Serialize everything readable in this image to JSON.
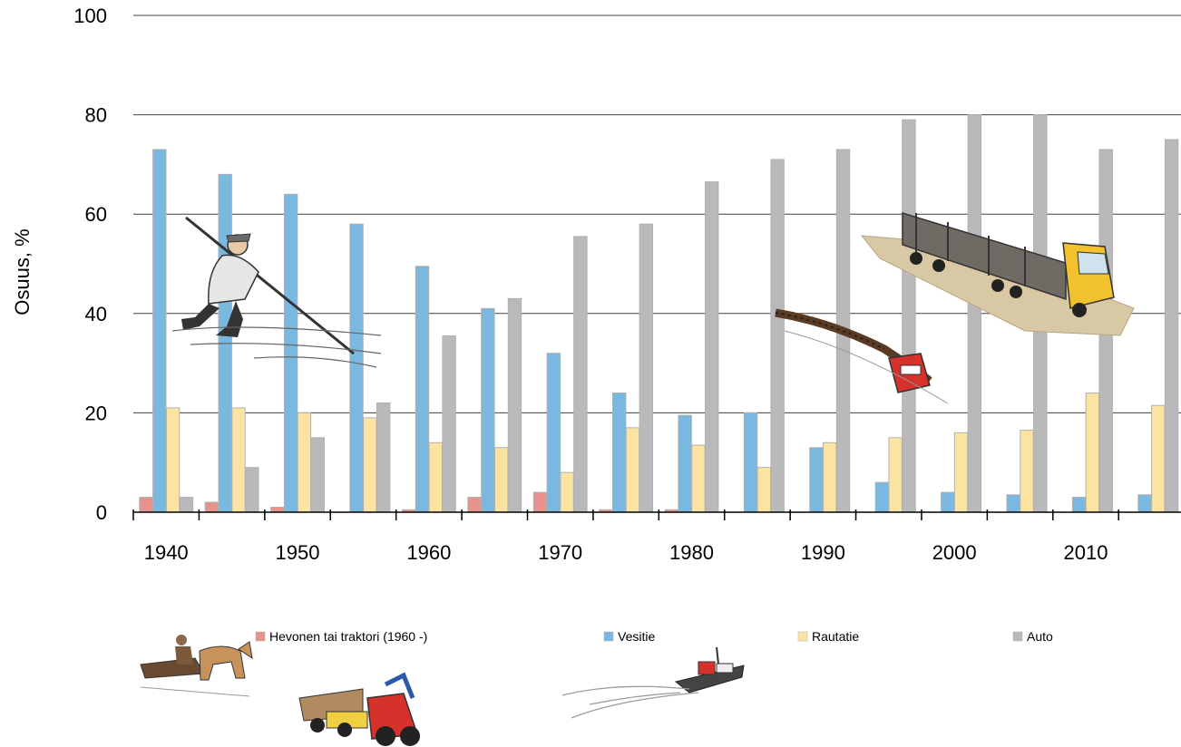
{
  "chart_data": {
    "type": "bar",
    "ylabel": "Osuus, %",
    "ylim": [
      0,
      100
    ],
    "yticks": [
      0,
      20,
      40,
      60,
      80,
      100
    ],
    "xticks": [
      "1940",
      "1950",
      "1960",
      "1970",
      "1980",
      "1990",
      "2000",
      "2010"
    ],
    "grid": true,
    "legend_position": "bottom",
    "x": [
      1940,
      1945,
      1950,
      1955,
      1960,
      1965,
      1970,
      1975,
      1980,
      1985,
      1990,
      1995,
      2000,
      2005,
      2010,
      2015
    ],
    "series": [
      {
        "name": "Hevonen tai traktori (1960 -)",
        "color": "#e8928e",
        "values": [
          3,
          2,
          1,
          0,
          0.5,
          3,
          4,
          0.5,
          0.5,
          0,
          0,
          0,
          0,
          0,
          0,
          0
        ]
      },
      {
        "name": "Vesitie",
        "color": "#7ab8e0",
        "values": [
          73,
          68,
          64,
          58,
          49.5,
          41,
          32,
          24,
          19.5,
          20,
          13,
          6,
          4,
          3.5,
          3,
          3.5
        ]
      },
      {
        "name": "Rautatie",
        "color": "#fbe3a2",
        "values": [
          21,
          21,
          20,
          19,
          14,
          13,
          8,
          17,
          13.5,
          9,
          14,
          15,
          16,
          16.5,
          24,
          21.5
        ]
      },
      {
        "name": "Auto",
        "color": "#b9b8ba",
        "values": [
          3,
          9,
          15,
          22,
          35.5,
          43,
          55.5,
          58,
          66.5,
          71,
          73,
          79,
          80,
          80,
          73,
          75
        ]
      }
    ],
    "illustrations": [
      "log-driver-icon",
      "timber-train-icon",
      "timber-truck-icon",
      "horse-sled-icon",
      "forwarder-tractor-icon",
      "tugboat-icon"
    ]
  }
}
